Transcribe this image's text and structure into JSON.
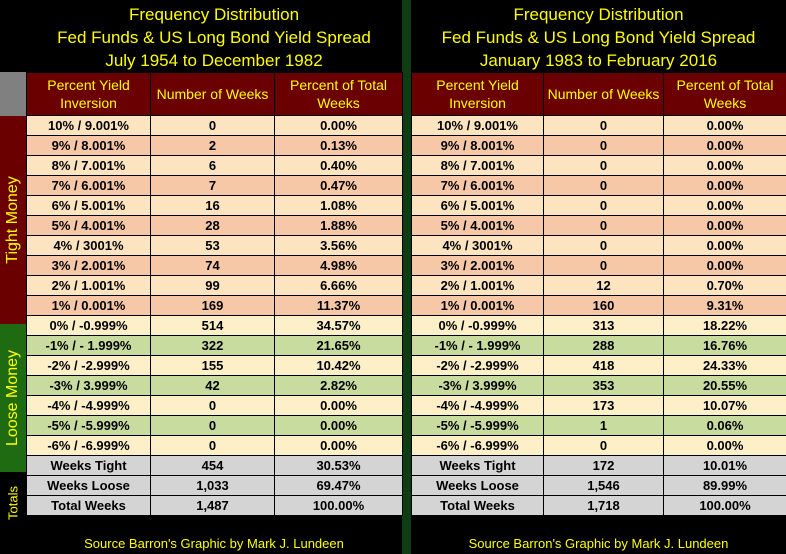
{
  "colors": {
    "title": "#ffff00",
    "header_bg": "#6b0000",
    "tight_bg": "#6b0000",
    "loose_bg": "#1e6b12",
    "divider": "#0e3d14"
  },
  "side_labels": {
    "tight": "Tight  Money",
    "loose": "Loose  Money",
    "totals": "Totals"
  },
  "panels": [
    {
      "title": [
        "Frequency Distribution",
        "Fed Funds & US Long Bond Yield Spread",
        "July 1954 to  December 1982"
      ],
      "headers": [
        "Percent Yield Inversion",
        "Number of Weeks",
        "Percent of Total Weeks"
      ],
      "tight_rows": [
        [
          "10% / 9.001%",
          "0",
          "0.00%"
        ],
        [
          "9% / 8.001%",
          "2",
          "0.13%"
        ],
        [
          "8% / 7.001%",
          "6",
          "0.40%"
        ],
        [
          "7% / 6.001%",
          "7",
          "0.47%"
        ],
        [
          "6% / 5.001%",
          "16",
          "1.08%"
        ],
        [
          "5% / 4.001%",
          "28",
          "1.88%"
        ],
        [
          "4% / 3001%",
          "53",
          "3.56%"
        ],
        [
          "3% / 2.001%",
          "74",
          "4.98%"
        ],
        [
          "2% / 1.001%",
          "99",
          "6.66%"
        ],
        [
          "1% / 0.001%",
          "169",
          "11.37%"
        ]
      ],
      "loose_rows": [
        [
          "0% / -0.999%",
          "514",
          "34.57%"
        ],
        [
          "-1% / - 1.999%",
          "322",
          "21.65%"
        ],
        [
          "-2% / -2.999%",
          "155",
          "10.42%"
        ],
        [
          "-3% / 3.999%",
          "42",
          "2.82%"
        ],
        [
          "-4% / -4.999%",
          "0",
          "0.00%"
        ],
        [
          "-5% / -5.999%",
          "0",
          "0.00%"
        ],
        [
          "-6% / -6.999%",
          "0",
          "0.00%"
        ]
      ],
      "total_rows": [
        [
          "Weeks Tight",
          "454",
          "30.53%"
        ],
        [
          "Weeks Loose",
          "1,033",
          "69.47%"
        ],
        [
          "Total Weeks",
          "1,487",
          "100.00%"
        ]
      ],
      "footer": "Source Barron's   Graphic by Mark J. Lundeen"
    },
    {
      "title": [
        "Frequency Distribution",
        "Fed Funds & US Long Bond Yield Spread",
        "January 1983 to February 2016"
      ],
      "headers": [
        "Percent Yield Inversion",
        "Number of Weeks",
        "Percent of Total Weeks"
      ],
      "tight_rows": [
        [
          "10% / 9.001%",
          "0",
          "0.00%"
        ],
        [
          "9% / 8.001%",
          "0",
          "0.00%"
        ],
        [
          "8% / 7.001%",
          "0",
          "0.00%"
        ],
        [
          "7% / 6.001%",
          "0",
          "0.00%"
        ],
        [
          "6% / 5.001%",
          "0",
          "0.00%"
        ],
        [
          "5% / 4.001%",
          "0",
          "0.00%"
        ],
        [
          "4% / 3001%",
          "0",
          "0.00%"
        ],
        [
          "3% / 2.001%",
          "0",
          "0.00%"
        ],
        [
          "2% / 1.001%",
          "12",
          "0.70%"
        ],
        [
          "1% / 0.001%",
          "160",
          "9.31%"
        ]
      ],
      "loose_rows": [
        [
          "0% / -0.999%",
          "313",
          "18.22%"
        ],
        [
          "-1% / - 1.999%",
          "288",
          "16.76%"
        ],
        [
          "-2% / -2.999%",
          "418",
          "24.33%"
        ],
        [
          "-3% / 3.999%",
          "353",
          "20.55%"
        ],
        [
          "-4% / -4.999%",
          "173",
          "10.07%"
        ],
        [
          "-5% / -5.999%",
          "1",
          "0.06%"
        ],
        [
          "-6% / -6.999%",
          "0",
          "0.00%"
        ]
      ],
      "total_rows": [
        [
          "Weeks Tight",
          "172",
          "10.01%"
        ],
        [
          "Weeks Loose",
          "1,546",
          "89.99%"
        ],
        [
          "Total Weeks",
          "1,718",
          "100.00%"
        ]
      ],
      "footer": "Source Barron's   Graphic by Mark J. Lundeen"
    }
  ]
}
